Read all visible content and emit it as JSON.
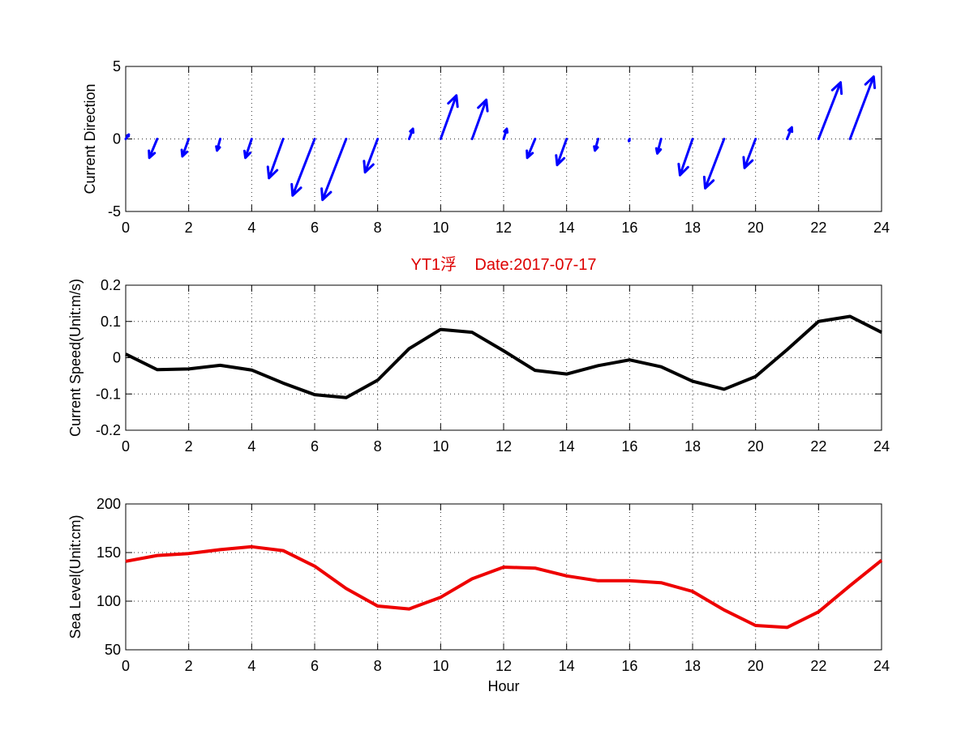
{
  "chart_data": [
    {
      "type": "quiver",
      "title": "",
      "xlabel": "",
      "ylabel": "Current Direction",
      "xlim": [
        0,
        24
      ],
      "ylim": [
        -5,
        5
      ],
      "xticks": [
        0,
        2,
        4,
        6,
        8,
        10,
        12,
        14,
        16,
        18,
        20,
        22,
        24
      ],
      "yticks": [
        -5,
        0,
        5
      ],
      "grid": true,
      "color": "#0000ff",
      "vectors": [
        {
          "x": 0,
          "u": 0.1,
          "v": 0.3
        },
        {
          "x": 1,
          "u": -0.25,
          "v": -1.3
        },
        {
          "x": 2,
          "u": -0.2,
          "v": -1.2
        },
        {
          "x": 3,
          "u": -0.1,
          "v": -0.8
        },
        {
          "x": 4,
          "u": -0.2,
          "v": -1.3
        },
        {
          "x": 5,
          "u": -0.45,
          "v": -2.7
        },
        {
          "x": 6,
          "u": -0.7,
          "v": -3.9
        },
        {
          "x": 7,
          "u": -0.75,
          "v": -4.2
        },
        {
          "x": 8,
          "u": -0.4,
          "v": -2.3
        },
        {
          "x": 9,
          "u": 0.12,
          "v": 0.7
        },
        {
          "x": 10,
          "u": 0.5,
          "v": 3.0
        },
        {
          "x": 11,
          "u": 0.45,
          "v": 2.7
        },
        {
          "x": 12,
          "u": 0.1,
          "v": 0.7
        },
        {
          "x": 13,
          "u": -0.25,
          "v": -1.3
        },
        {
          "x": 14,
          "u": -0.3,
          "v": -1.8
        },
        {
          "x": 15,
          "u": -0.1,
          "v": -0.8
        },
        {
          "x": 16,
          "u": -0.02,
          "v": -0.15
        },
        {
          "x": 17,
          "u": -0.12,
          "v": -1.0
        },
        {
          "x": 18,
          "u": -0.4,
          "v": -2.5
        },
        {
          "x": 19,
          "u": -0.6,
          "v": -3.4
        },
        {
          "x": 20,
          "u": -0.35,
          "v": -2.0
        },
        {
          "x": 21,
          "u": 0.15,
          "v": 0.8
        },
        {
          "x": 22,
          "u": 0.7,
          "v": 3.9
        },
        {
          "x": 23,
          "u": 0.75,
          "v": 4.3
        }
      ]
    },
    {
      "type": "line",
      "title": "YT1浮    Date:2017-07-17",
      "xlabel": "",
      "ylabel": "Current Speed(Unit:m/s)",
      "xlim": [
        0,
        24
      ],
      "ylim": [
        -0.2,
        0.2
      ],
      "xticks": [
        0,
        2,
        4,
        6,
        8,
        10,
        12,
        14,
        16,
        18,
        20,
        22,
        24
      ],
      "yticks": [
        -0.2,
        -0.1,
        0,
        0.1,
        0.2
      ],
      "ytick_labels": [
        "-0.2",
        "-0.1",
        "0",
        "0.1",
        "0.2"
      ],
      "grid": true,
      "color": "#000000",
      "x": [
        0,
        1,
        2,
        3,
        4,
        5,
        6,
        7,
        8,
        9,
        10,
        11,
        12,
        13,
        14,
        15,
        16,
        17,
        18,
        19,
        20,
        21,
        22,
        23,
        24
      ],
      "values": [
        0.01,
        -0.033,
        -0.031,
        -0.021,
        -0.034,
        -0.07,
        -0.102,
        -0.11,
        -0.062,
        0.025,
        0.078,
        0.07,
        0.019,
        -0.035,
        -0.045,
        -0.022,
        -0.006,
        -0.025,
        -0.065,
        -0.087,
        -0.052,
        0.022,
        0.1,
        0.114,
        0.07
      ]
    },
    {
      "type": "line",
      "title": "",
      "xlabel": "Hour",
      "ylabel": "Sea Level(Unit:cm)",
      "xlim": [
        0,
        24
      ],
      "ylim": [
        50,
        200
      ],
      "xticks": [
        0,
        2,
        4,
        6,
        8,
        10,
        12,
        14,
        16,
        18,
        20,
        22,
        24
      ],
      "yticks": [
        50,
        100,
        150,
        200
      ],
      "grid": true,
      "color": "#ee0000",
      "x": [
        0,
        1,
        2,
        3,
        4,
        5,
        6,
        7,
        8,
        9,
        10,
        11,
        12,
        13,
        14,
        15,
        16,
        17,
        18,
        19,
        20,
        21,
        22,
        23,
        24
      ],
      "values": [
        141,
        147,
        149,
        153,
        156,
        152,
        136,
        113,
        95,
        92,
        104,
        123,
        135,
        134,
        126,
        121,
        121,
        119,
        110,
        91,
        75,
        73,
        89,
        116,
        142
      ]
    }
  ]
}
